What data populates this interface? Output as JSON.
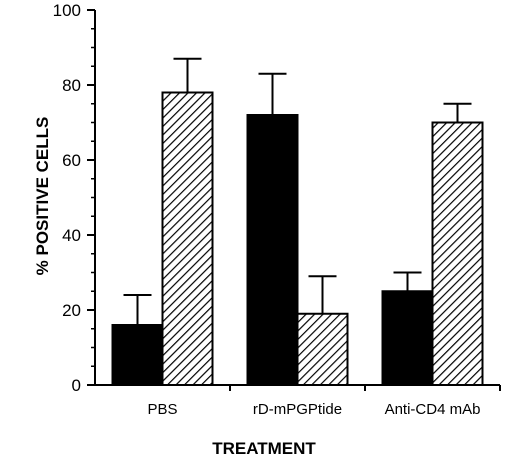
{
  "chart_data": {
    "type": "bar",
    "categories": [
      "PBS",
      "rD-mPGPtide",
      "Anti-CD4 mAb"
    ],
    "series": [
      {
        "values": [
          16,
          72,
          25
        ],
        "errors": [
          8,
          11,
          5
        ],
        "fill": "solid"
      },
      {
        "values": [
          78,
          19,
          70
        ],
        "errors": [
          9,
          10,
          5
        ],
        "fill": "hatched"
      }
    ],
    "xlabel": "TREATMENT",
    "ylabel": "% POSITIVE CELLS",
    "ylim": [
      0,
      100
    ],
    "yticks": [
      0,
      20,
      40,
      60,
      80,
      100
    ],
    "grid": false,
    "legend": "none",
    "colors": {
      "solid": "#000000",
      "hatch": "#000000",
      "background": "#ffffff"
    }
  }
}
